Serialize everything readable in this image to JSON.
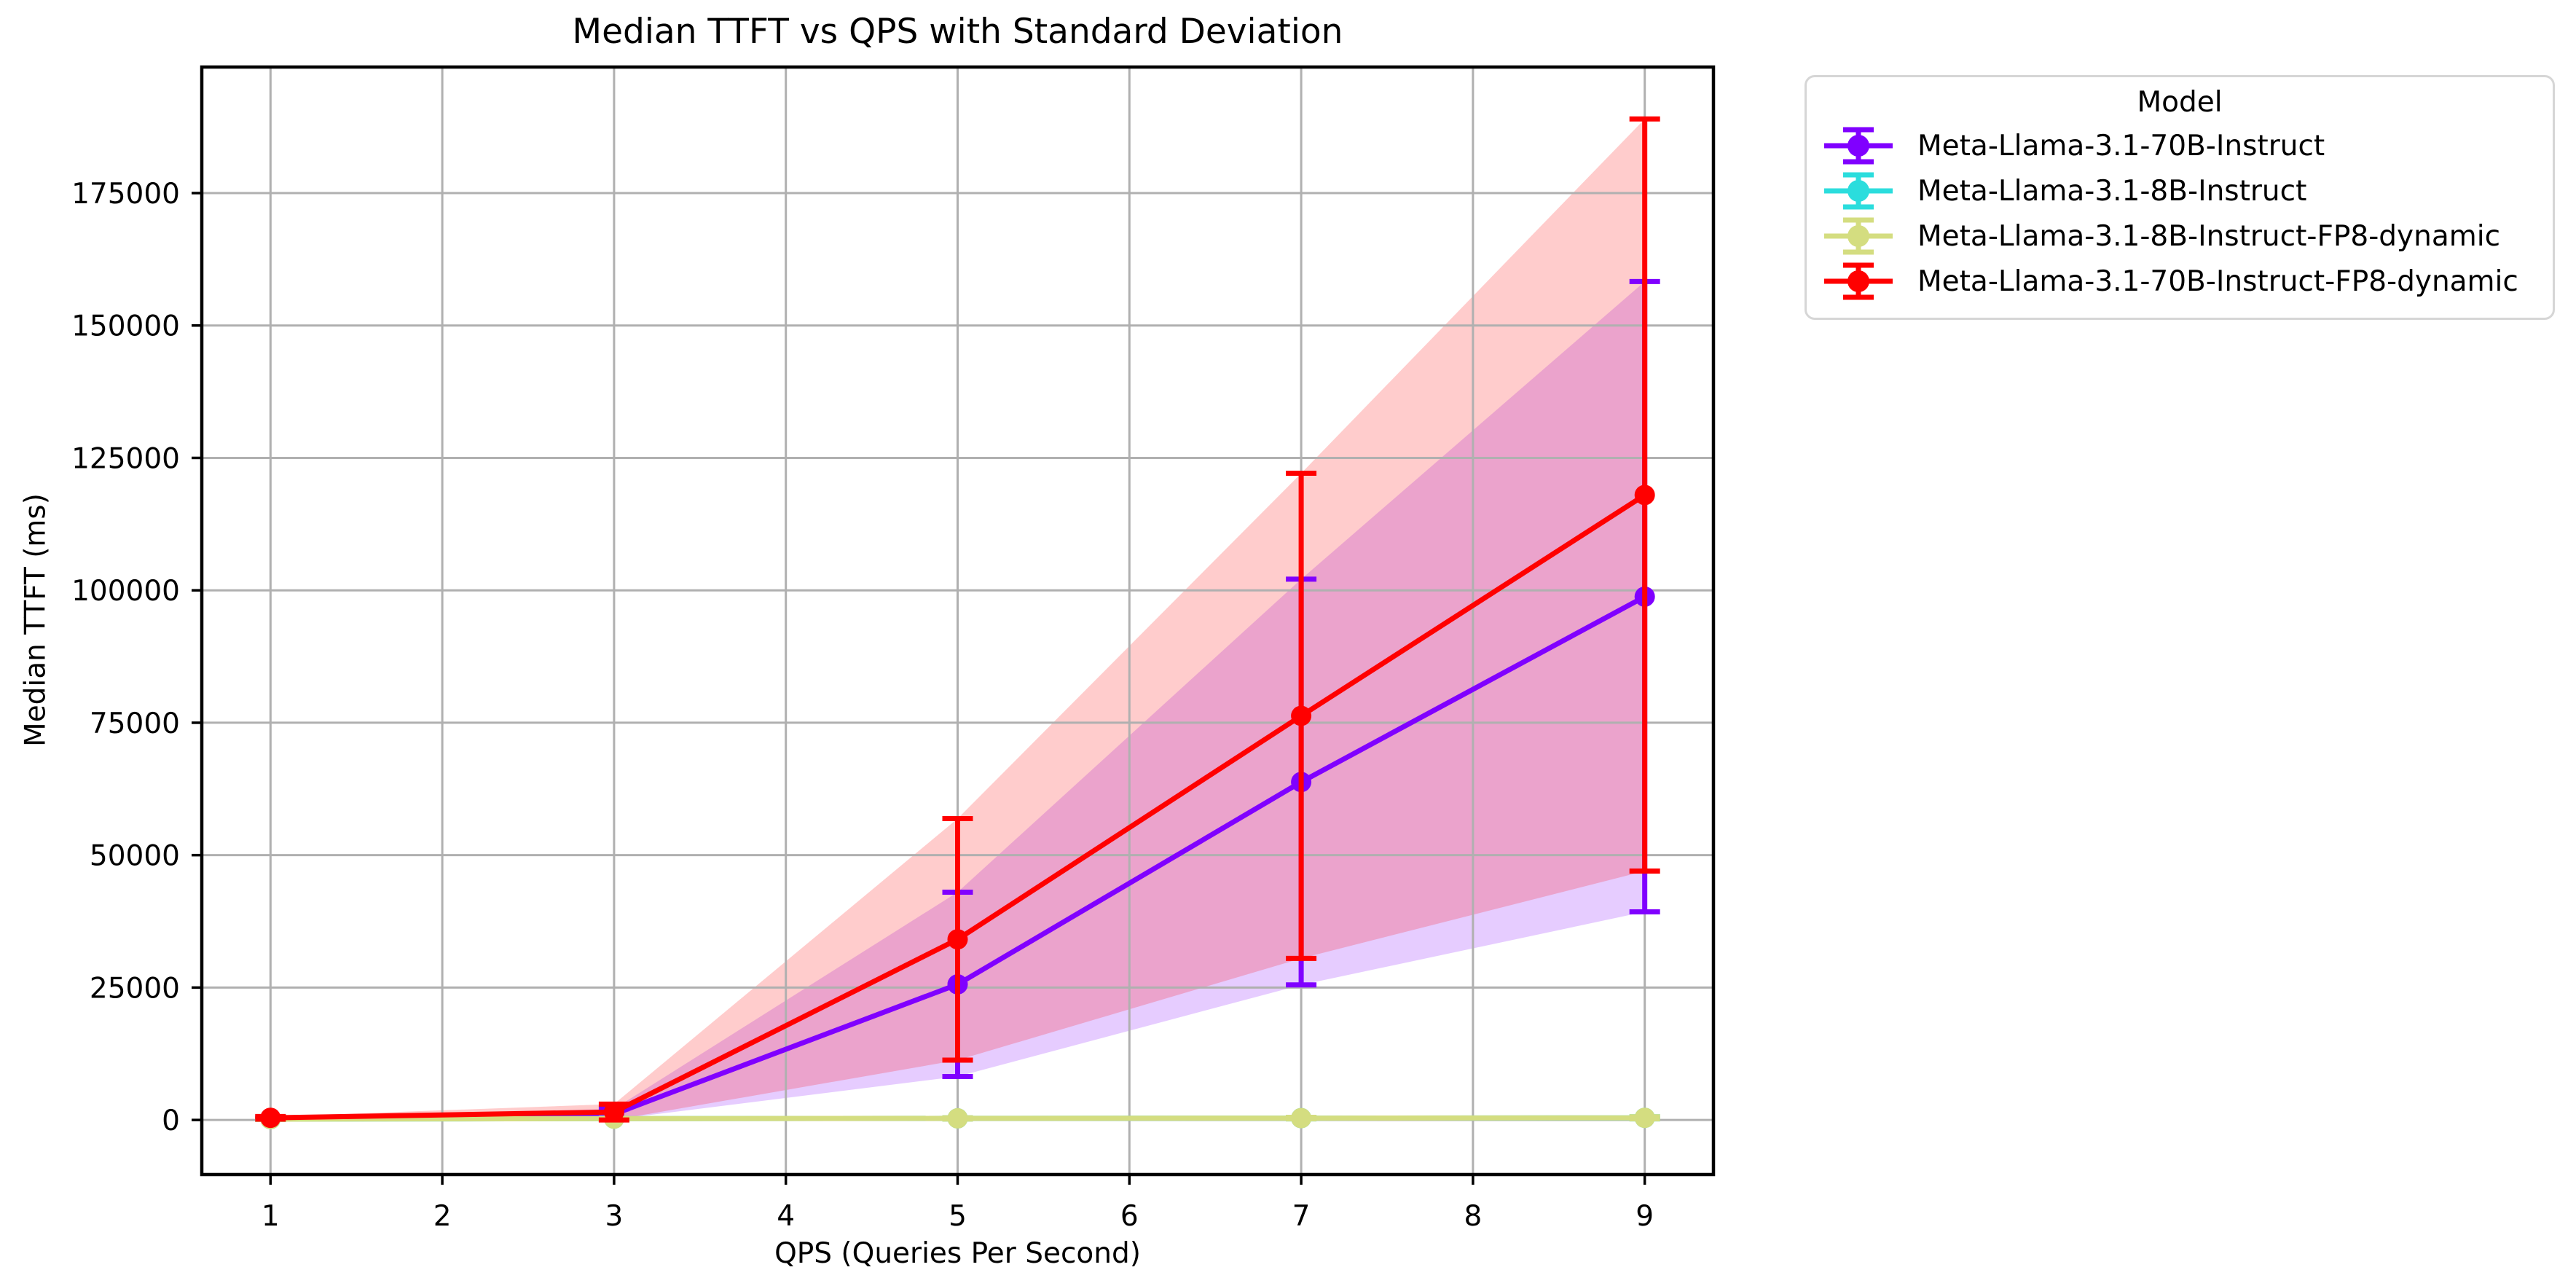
{
  "chart_data": {
    "type": "line",
    "title": "Median TTFT vs QPS with Standard Deviation",
    "xlabel": "QPS (Queries Per Second)",
    "ylabel": "Median TTFT (ms)",
    "legend_title": "Model",
    "legend_position": "outside upper right",
    "grid": true,
    "band": "fill_between median±std, alpha 0.2",
    "marker": "circle with error bars and caps",
    "x": [
      1,
      3,
      5,
      7,
      9
    ],
    "x_ticks": [
      1,
      2,
      3,
      4,
      5,
      6,
      7,
      8,
      9
    ],
    "y_ticks": [
      0,
      25000,
      50000,
      75000,
      100000,
      125000,
      150000,
      175000
    ],
    "xlim": [
      0.6,
      9.4
    ],
    "ylim": [
      -10300,
      198800
    ],
    "series": [
      {
        "name": "Meta-Llama-3.1-70B-Instruct",
        "color": "#8000ff",
        "median": [
          350,
          1100,
          25600,
          63800,
          98800
        ],
        "std": [
          150,
          1000,
          17400,
          38300,
          59500
        ]
      },
      {
        "name": "Meta-Llama-3.1-8B-Instruct",
        "color": "#2bdddd",
        "median": [
          150,
          250,
          300,
          350,
          400
        ],
        "std": [
          50,
          80,
          120,
          150,
          200
        ]
      },
      {
        "name": "Meta-Llama-3.1-8B-Instruct-FP8-dynamic",
        "color": "#d4dd80",
        "median": [
          150,
          250,
          300,
          350,
          400
        ],
        "std": [
          50,
          80,
          120,
          150,
          200
        ]
      },
      {
        "name": "Meta-Llama-3.1-70B-Instruct-FP8-dynamic",
        "color": "#ff0000",
        "median": [
          400,
          1500,
          34100,
          76300,
          118000
        ],
        "std": [
          250,
          1500,
          22800,
          45800,
          71000
        ]
      }
    ],
    "style": {
      "grid_color": "#b0b0b0",
      "spine_color": "#000000",
      "band_alpha": 0.2
    }
  }
}
